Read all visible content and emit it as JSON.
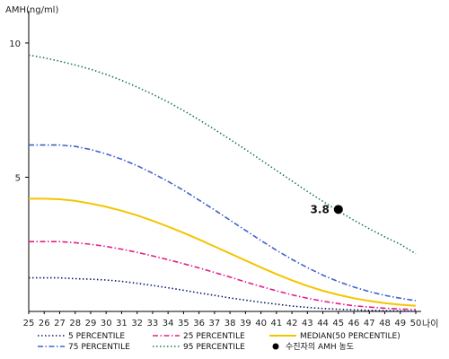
{
  "chart_data": {
    "type": "line",
    "ylabel": "AMH(ng/ml)",
    "xlabel": "나이",
    "x": [
      25,
      26,
      27,
      28,
      29,
      30,
      31,
      32,
      33,
      34,
      35,
      36,
      37,
      38,
      39,
      40,
      41,
      42,
      43,
      44,
      45,
      46,
      47,
      48,
      49,
      50
    ],
    "xlim": [
      25,
      50
    ],
    "ylim": [
      0,
      11
    ],
    "yticks": [
      5,
      10
    ],
    "series": [
      {
        "name": "5 PERCENTILE",
        "color": "#0b1a6b",
        "dash": "dot",
        "values": [
          1.25,
          1.25,
          1.25,
          1.22,
          1.2,
          1.17,
          1.12,
          1.05,
          0.97,
          0.88,
          0.79,
          0.69,
          0.6,
          0.5,
          0.42,
          0.34,
          0.27,
          0.2,
          0.15,
          0.11,
          0.08,
          0.06,
          0.04,
          0.03,
          0.02,
          0.01
        ]
      },
      {
        "name": "25 PERCENTILE",
        "color": "#e0208a",
        "dash": "dashdot",
        "values": [
          2.6,
          2.6,
          2.6,
          2.56,
          2.5,
          2.42,
          2.32,
          2.2,
          2.07,
          1.93,
          1.78,
          1.62,
          1.45,
          1.28,
          1.1,
          0.93,
          0.77,
          0.62,
          0.49,
          0.38,
          0.29,
          0.21,
          0.16,
          0.12,
          0.09,
          0.07
        ]
      },
      {
        "name": "MEDIAN(50 PERCENTILE)",
        "color": "#f5c400",
        "dash": "solid",
        "values": [
          4.2,
          4.2,
          4.18,
          4.12,
          4.02,
          3.9,
          3.75,
          3.58,
          3.38,
          3.16,
          2.93,
          2.68,
          2.42,
          2.16,
          1.9,
          1.64,
          1.39,
          1.16,
          0.95,
          0.77,
          0.62,
          0.49,
          0.39,
          0.31,
          0.25,
          0.21
        ]
      },
      {
        "name": "75 PERCENTILE",
        "color": "#3f63c8",
        "dash": "dashdot",
        "values": [
          6.2,
          6.2,
          6.2,
          6.15,
          6.03,
          5.87,
          5.67,
          5.43,
          5.15,
          4.84,
          4.51,
          4.15,
          3.78,
          3.4,
          3.02,
          2.64,
          2.28,
          1.94,
          1.63,
          1.35,
          1.11,
          0.91,
          0.74,
          0.6,
          0.49,
          0.4
        ]
      },
      {
        "name": "95 PERCENTILE",
        "color": "#1c7a4a",
        "dash": "dot",
        "values": [
          9.55,
          9.45,
          9.32,
          9.18,
          9.02,
          8.83,
          8.61,
          8.36,
          8.09,
          7.8,
          7.48,
          7.14,
          6.78,
          6.41,
          6.03,
          5.64,
          5.25,
          4.86,
          4.47,
          4.1,
          3.74,
          3.4,
          3.08,
          2.78,
          2.5,
          2.15
        ]
      }
    ],
    "points": [
      {
        "name": "수진자의 AMH 농도",
        "x": 45,
        "y": 3.8,
        "label": "3.8",
        "color": "#000000"
      }
    ]
  }
}
